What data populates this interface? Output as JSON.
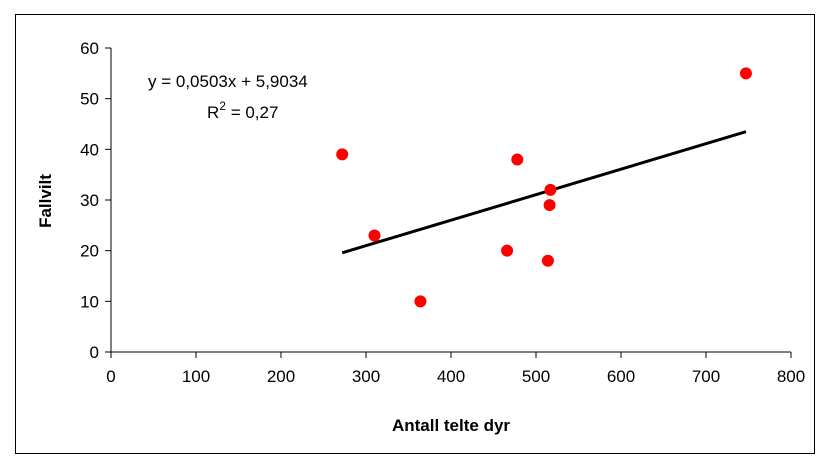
{
  "chart_data": {
    "type": "scatter",
    "xlabel": "Antall telte dyr",
    "ylabel": "Fallvilt",
    "xlim": [
      0,
      800
    ],
    "ylim": [
      0,
      60
    ],
    "x_ticks": [
      0,
      100,
      200,
      300,
      400,
      500,
      600,
      700,
      800
    ],
    "y_ticks": [
      0,
      10,
      20,
      30,
      40,
      50,
      60
    ],
    "x_tick_labels": [
      "0",
      "100",
      "200",
      "300",
      "400",
      "500",
      "600",
      "700",
      "800"
    ],
    "y_tick_labels": [
      "0",
      "10",
      "20",
      "30",
      "40",
      "50",
      "60"
    ],
    "grid": false,
    "legend": "none",
    "marker_color": "#ff0000",
    "trendline_color": "#000000",
    "points": [
      {
        "x": 272,
        "y": 39
      },
      {
        "x": 310,
        "y": 23
      },
      {
        "x": 364,
        "y": 10
      },
      {
        "x": 466,
        "y": 20
      },
      {
        "x": 478,
        "y": 38
      },
      {
        "x": 514,
        "y": 18
      },
      {
        "x": 516,
        "y": 29
      },
      {
        "x": 517,
        "y": 32
      },
      {
        "x": 747,
        "y": 55
      }
    ],
    "trendline": {
      "slope": 0.0503,
      "intercept": 5.9034,
      "x_range": [
        272,
        747
      ],
      "equation": "y = 0,0503x + 5,9034",
      "r2_prefix": "R",
      "r2_sup": "2",
      "r2_suffix": " = 0,27"
    }
  }
}
